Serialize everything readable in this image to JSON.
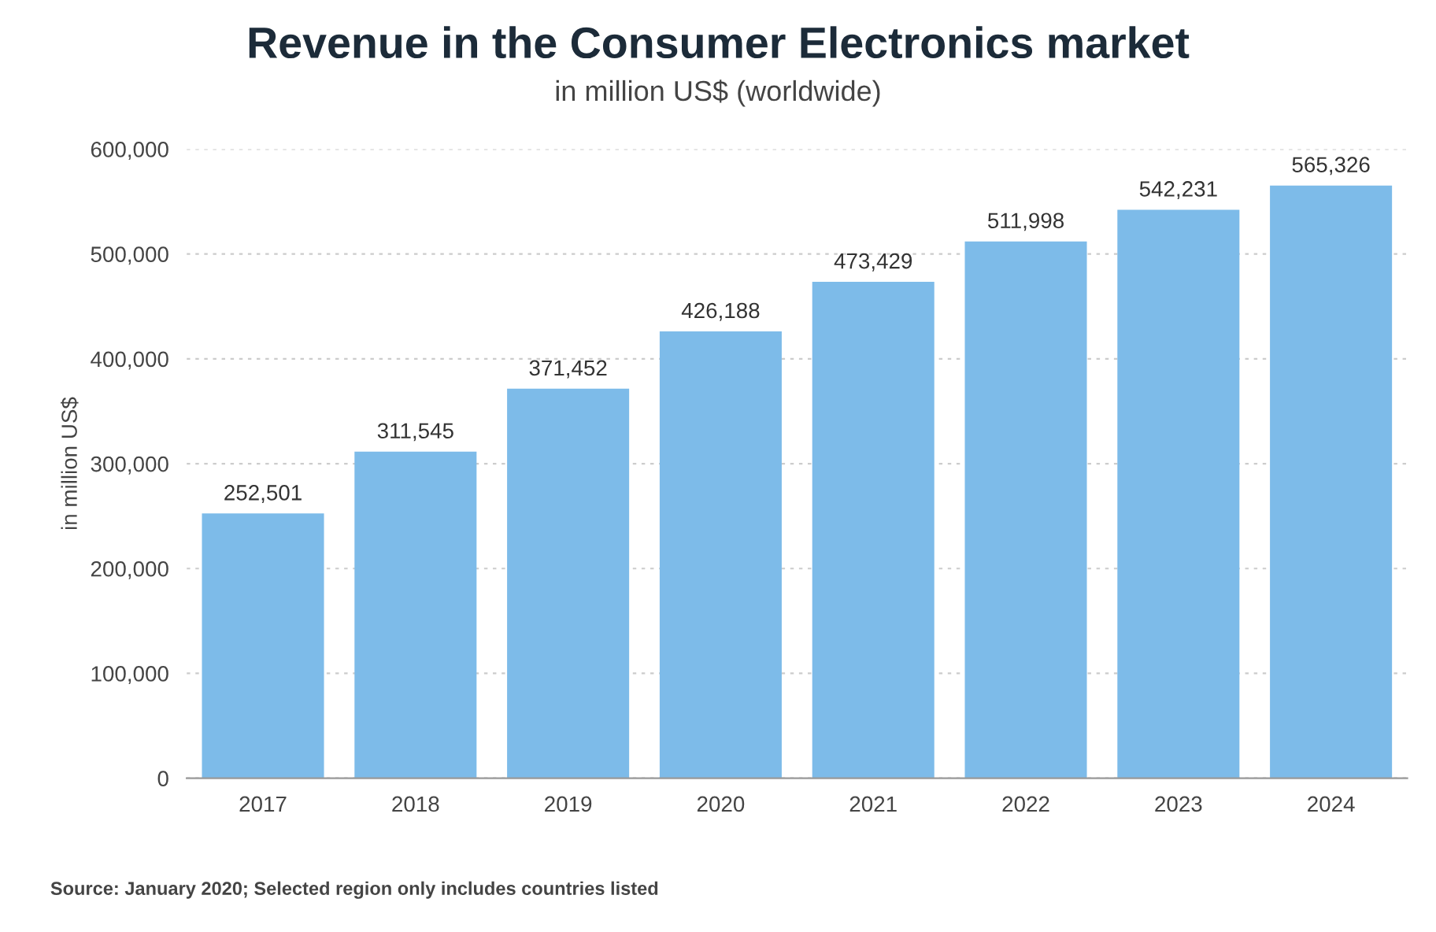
{
  "chart_data": {
    "type": "bar",
    "title": "Revenue in the Consumer Electronics market",
    "subtitle": "in million US$ (worldwide)",
    "ylabel": "in million US$",
    "categories": [
      "2017",
      "2018",
      "2019",
      "2020",
      "2021",
      "2022",
      "2023",
      "2024"
    ],
    "values": [
      252501,
      311545,
      371452,
      426188,
      473429,
      511998,
      542231,
      565326
    ],
    "value_labels": [
      "252,501",
      "311,545",
      "371,452",
      "426,188",
      "473,429",
      "511,998",
      "542,231",
      "565,326"
    ],
    "color": "#7dbbe9",
    "ylim": [
      0,
      600000
    ],
    "yticks": [
      {
        "value": 0,
        "label": "0"
      },
      {
        "value": 100000,
        "label": "100,000"
      },
      {
        "value": 200000,
        "label": "200,000"
      },
      {
        "value": 300000,
        "label": "300,000"
      },
      {
        "value": 400000,
        "label": "400,000"
      },
      {
        "value": 500000,
        "label": "500,000"
      },
      {
        "value": 600000,
        "label": "600,000"
      }
    ],
    "grid": "y",
    "annotations": [
      "Source: January 2020; Selected region only includes countries listed"
    ]
  }
}
